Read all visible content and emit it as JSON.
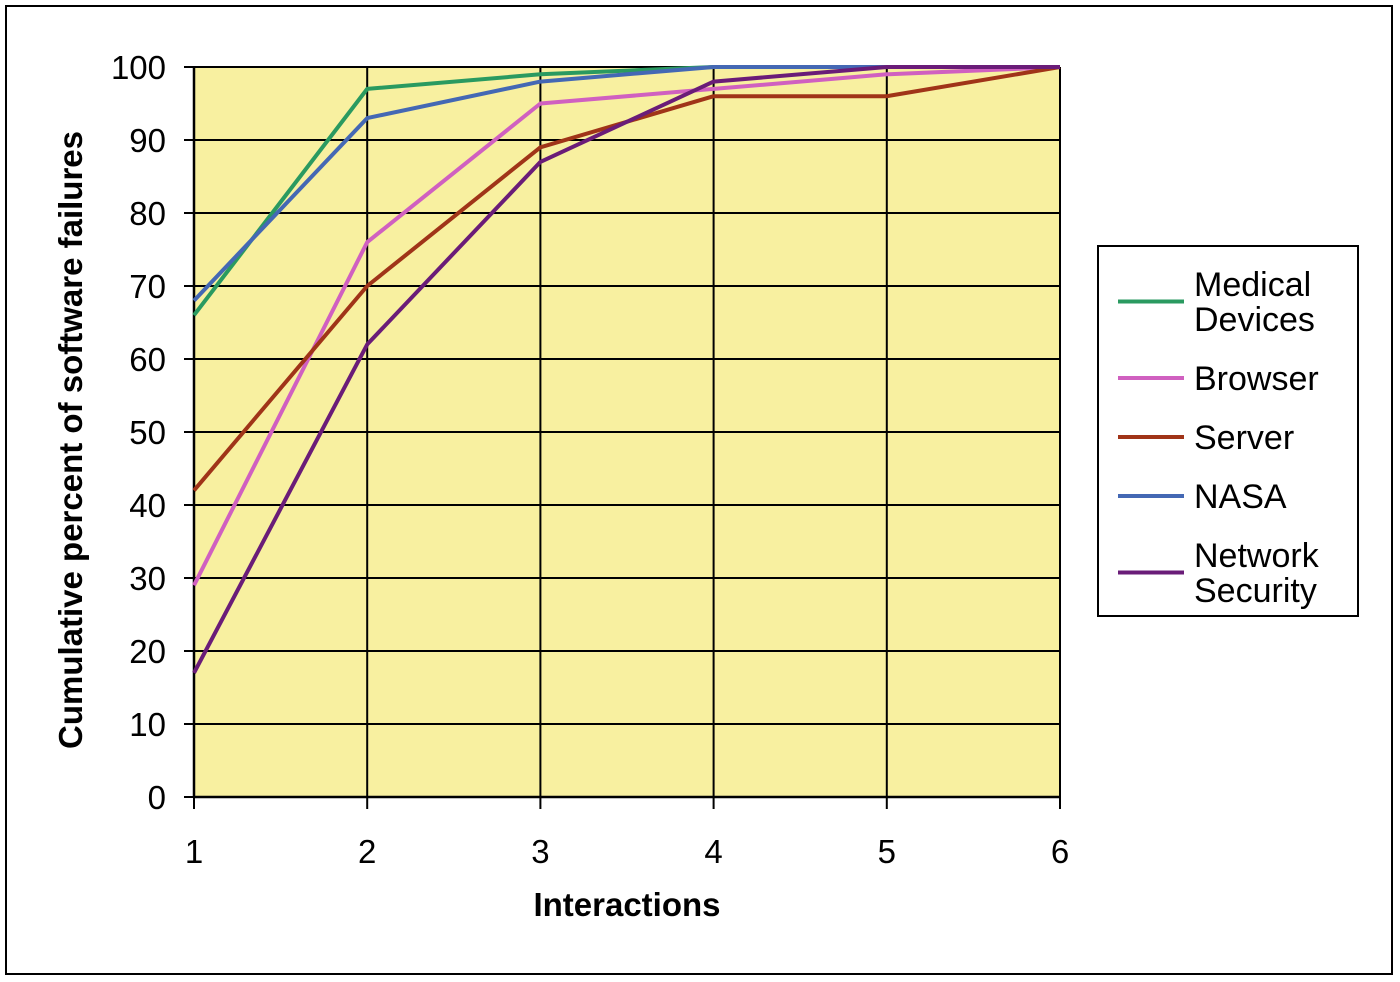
{
  "chart_data": {
    "type": "line",
    "title": "",
    "xlabel": "Interactions",
    "ylabel": "Cumulative percent of software failures",
    "x": [
      1,
      2,
      3,
      4,
      5,
      6
    ],
    "xlim": [
      1,
      6
    ],
    "ylim": [
      0,
      100
    ],
    "yticks": [
      0,
      10,
      20,
      30,
      40,
      50,
      60,
      70,
      80,
      90,
      100
    ],
    "xticks": [
      1,
      2,
      3,
      4,
      5,
      6
    ],
    "grid": true,
    "plot_background": "#f8f0a0",
    "legend_position": "right",
    "series": [
      {
        "name_lines": [
          "Medical",
          "Devices"
        ],
        "color": "#2a9a60",
        "values": [
          66,
          97,
          99,
          100,
          100,
          100
        ]
      },
      {
        "name_lines": [
          "Browser"
        ],
        "color": "#d060c0",
        "values": [
          29,
          76,
          95,
          97,
          99,
          100
        ]
      },
      {
        "name_lines": [
          "Server"
        ],
        "color": "#a03418",
        "values": [
          42,
          70,
          89,
          96,
          96,
          100
        ]
      },
      {
        "name_lines": [
          "NASA"
        ],
        "color": "#4468b4",
        "values": [
          68,
          93,
          98,
          100,
          100,
          100
        ]
      },
      {
        "name_lines": [
          "Network",
          "Security"
        ],
        "color": "#6a1c78",
        "values": [
          17,
          62,
          87,
          98,
          100,
          100
        ]
      }
    ]
  }
}
